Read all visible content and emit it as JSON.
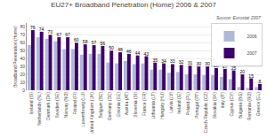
{
  "chart_data": {
    "type": "bar",
    "title": "EU27+ Broadband Penetration (Home) 2006 & 2007",
    "annotations": [
      "Source: Eurostat 2007"
    ],
    "ylabel": "Broadband Penetration (Home)",
    "categories": [
      "Iceland (IS)",
      "Netherlands (NL)",
      "Denmark (DK)",
      "Sweden (SE)",
      "Norway (NO)",
      "Finland (FI)",
      "Luxembourg (LU)",
      "United Kingdom (UK)",
      "Belgium (BE)",
      "Germany (DE)",
      "Estonia (EE)",
      "Austria (AT)",
      "Slovenia (SI)",
      "France (FR)",
      "Lithuania (LT)",
      "Hungary (HU)",
      "Latvia (LV)",
      "Ireland (IE)",
      "Poland (PL)",
      "Portugal (PT)",
      "Czech Republic (CZ)",
      "Slovakia (SK)",
      "Italy (IT)",
      "Cyprus (CY)",
      "Bulgaria (BG)",
      "Romania (RO)",
      "Greece (EL)"
    ],
    "series": [
      {
        "name": "2006",
        "color": "#b0b8d8",
        "values": [
          57,
          67,
          65,
          62,
          52,
          52,
          45,
          46,
          46,
          35,
          34,
          37,
          33,
          34,
          26,
          26,
          22,
          23,
          20,
          20,
          19,
          19,
          17,
          14,
          4,
          3,
          4
        ]
      },
      {
        "name": "2007",
        "color": "#3d006e",
        "data_labels": true,
        "values": [
          76,
          74,
          70,
          67,
          67,
          60,
          58,
          57,
          56,
          50,
          48,
          46,
          44,
          43,
          35,
          34,
          33,
          32,
          31,
          30,
          30,
          28,
          27,
          25,
          20,
          15,
          8
        ]
      }
    ],
    "ylim": [
      0,
      85
    ],
    "yticks": [
      0,
      10,
      20,
      30,
      40,
      50,
      60,
      70,
      80
    ],
    "grid": true,
    "legend": "upper right"
  }
}
